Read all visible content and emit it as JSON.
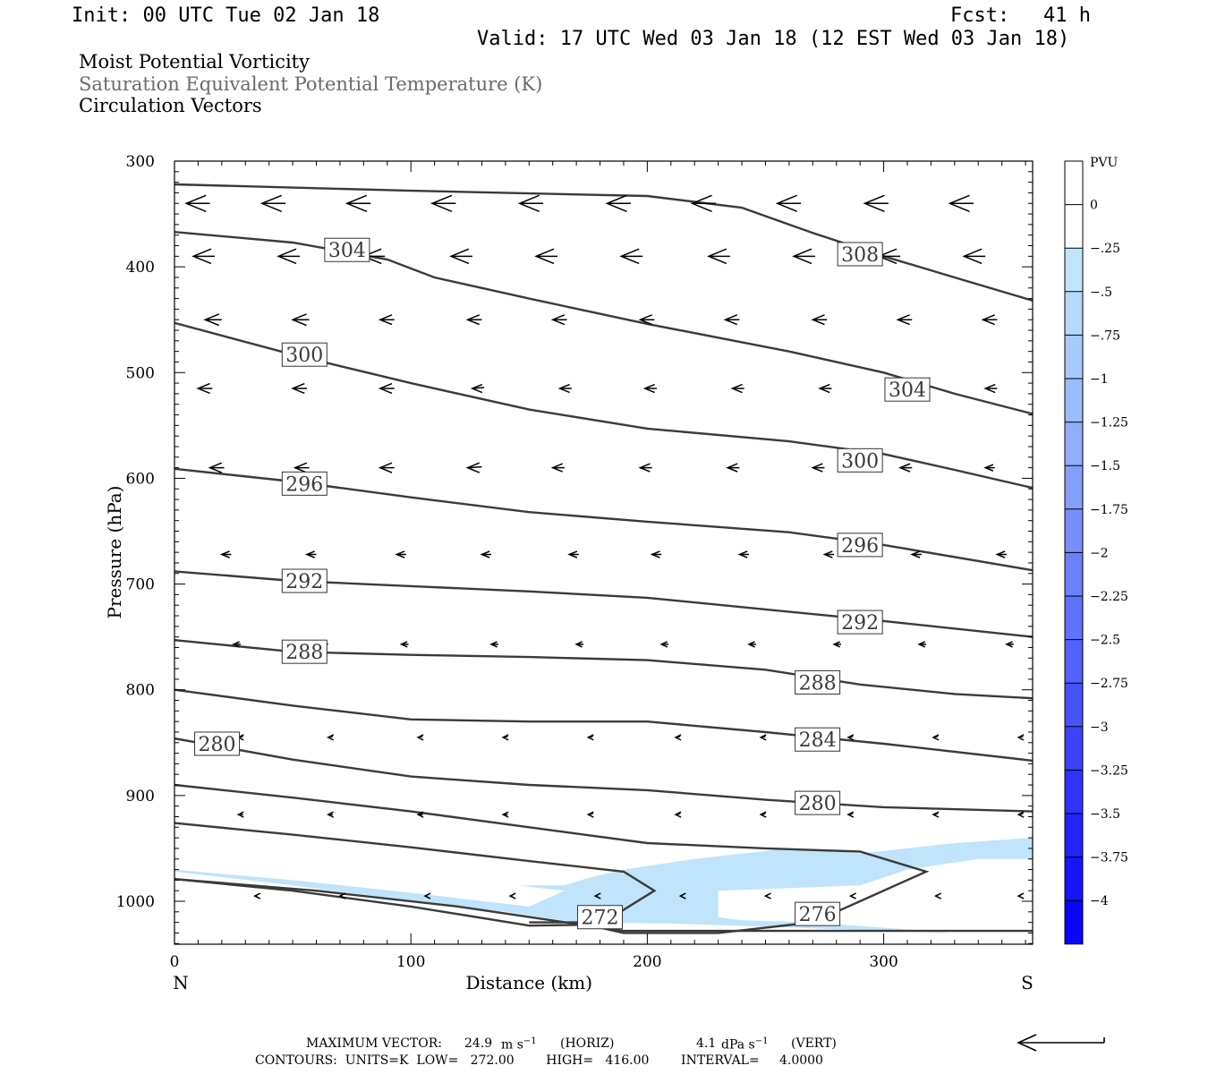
{
  "header": {
    "init": "Init: 00 UTC Tue 02 Jan 18",
    "fcst_label": "Fcst:",
    "fcst_value": "41 h",
    "valid": "Valid: 17 UTC Wed 03 Jan 18 (12 EST Wed 03 Jan 18)"
  },
  "titles": {
    "line1": "Moist Potential Vorticity",
    "line2": "Saturation Equivalent Potential Temperature (K)",
    "line3": "Circulation Vectors"
  },
  "footer": {
    "max_vector_label": "MAXIMUM VECTOR:",
    "max_vector_horiz_value": "24.9",
    "horiz_unit": "m s",
    "horiz_exp": "−1",
    "horiz_tag": "(HORIZ)",
    "max_vector_vert_value": "4.1",
    "vert_unit": "dPa s",
    "vert_exp": "−1",
    "vert_tag": "(VERT)",
    "contours_line": "CONTOURS:  UNITS=K  LOW=   272.00        HIGH=   416.00        INTERVAL=     4.0000"
  },
  "chart_data": {
    "type": "cross-section",
    "xlabel": "Distance (km)",
    "ylabel": "Pressure (hPa)",
    "xlim": [
      0,
      363
    ],
    "ylim": [
      300,
      1040
    ],
    "x_ticks": [
      0,
      100,
      200,
      300
    ],
    "y_ticks": [
      300,
      400,
      500,
      600,
      700,
      800,
      900,
      1000
    ],
    "endpoint_left": "N",
    "endpoint_right": "S",
    "colorbar": {
      "label": "PVU",
      "levels": [
        "0",
        "-.25",
        "-.5",
        "-.75",
        "-1",
        "-1.25",
        "-1.5",
        "-1.75",
        "-2",
        "-2.25",
        "-2.5",
        "-2.75",
        "-3",
        "-3.25",
        "-3.5",
        "-3.75",
        "-4"
      ],
      "colors": [
        "#ffffff",
        "#ffffff",
        "#bfe4fb",
        "#b4d9fb",
        "#a8cbfb",
        "#9cbdfb",
        "#90aefb",
        "#849ffb",
        "#788ffb",
        "#6c80fb",
        "#6071fb",
        "#5461fb",
        "#4852fb",
        "#3c43fb",
        "#2f33fb",
        "#2324fb",
        "#1715fb",
        "#0a06fb"
      ]
    },
    "contours": [
      {
        "label": "308",
        "points": [
          [
            0,
            322
          ],
          [
            100,
            328
          ],
          [
            200,
            333
          ],
          [
            240,
            344
          ],
          [
            270,
            368
          ],
          [
            300,
            390
          ],
          [
            330,
            410
          ],
          [
            363,
            432
          ]
        ]
      },
      {
        "label": "304",
        "points": [
          [
            0,
            367
          ],
          [
            50,
            377
          ],
          [
            90,
            393
          ],
          [
            110,
            410
          ],
          [
            150,
            430
          ],
          [
            200,
            454
          ],
          [
            260,
            480
          ],
          [
            300,
            500
          ],
          [
            330,
            520
          ],
          [
            363,
            539
          ]
        ]
      },
      {
        "label": "300",
        "points": [
          [
            0,
            453
          ],
          [
            50,
            483
          ],
          [
            100,
            510
          ],
          [
            150,
            535
          ],
          [
            200,
            553
          ],
          [
            260,
            565
          ],
          [
            300,
            577
          ],
          [
            330,
            592
          ],
          [
            363,
            609
          ]
        ]
      },
      {
        "label": "296",
        "points": [
          [
            0,
            591
          ],
          [
            50,
            603
          ],
          [
            100,
            618
          ],
          [
            150,
            632
          ],
          [
            200,
            641
          ],
          [
            260,
            651
          ],
          [
            300,
            663
          ],
          [
            363,
            687
          ]
        ]
      },
      {
        "label": "292",
        "points": [
          [
            0,
            688
          ],
          [
            50,
            697
          ],
          [
            100,
            702
          ],
          [
            150,
            707
          ],
          [
            200,
            713
          ],
          [
            250,
            724
          ],
          [
            300,
            735
          ],
          [
            363,
            750
          ]
        ]
      },
      {
        "label": "288",
        "points": [
          [
            0,
            753
          ],
          [
            50,
            764
          ],
          [
            100,
            767
          ],
          [
            150,
            769
          ],
          [
            200,
            772
          ],
          [
            250,
            781
          ],
          [
            290,
            795
          ],
          [
            330,
            804
          ],
          [
            363,
            808
          ]
        ]
      },
      {
        "label": "284",
        "points": [
          [
            0,
            800
          ],
          [
            50,
            815
          ],
          [
            100,
            828
          ],
          [
            150,
            830
          ],
          [
            200,
            830
          ],
          [
            250,
            840
          ],
          [
            300,
            851
          ],
          [
            363,
            867
          ]
        ]
      },
      {
        "label": "280",
        "points": [
          [
            0,
            846
          ],
          [
            50,
            866
          ],
          [
            100,
            882
          ],
          [
            150,
            890
          ],
          [
            200,
            895
          ],
          [
            250,
            904
          ],
          [
            300,
            911
          ],
          [
            363,
            915
          ]
        ]
      },
      {
        "label": "276",
        "points": [
          [
            0,
            890
          ],
          [
            50,
            902
          ],
          [
            100,
            915
          ],
          [
            150,
            930
          ],
          [
            200,
            945
          ],
          [
            250,
            950
          ],
          [
            290,
            953
          ],
          [
            318,
            972
          ],
          [
            290,
            1000
          ],
          [
            270,
            1020
          ],
          [
            230,
            1030
          ],
          [
            190,
            1030
          ],
          [
            170,
            1020
          ],
          [
            150,
            1020
          ]
        ]
      },
      {
        "label": "272",
        "points": [
          [
            0,
            926
          ],
          [
            50,
            937
          ],
          [
            100,
            949
          ],
          [
            150,
            962
          ],
          [
            190,
            972
          ],
          [
            203,
            990
          ],
          [
            190,
            1008
          ],
          [
            180,
            1022
          ],
          [
            150,
            1023
          ],
          [
            100,
            1005
          ],
          [
            50,
            990
          ],
          [
            0,
            979
          ]
        ]
      },
      {
        "label": "",
        "points": [
          [
            0,
            979
          ],
          [
            60,
            990
          ],
          [
            120,
            1005
          ],
          [
            190,
            1028
          ],
          [
            363,
            1028
          ]
        ]
      }
    ],
    "contour_labels": [
      {
        "text": "308",
        "x": 290,
        "y": 388
      },
      {
        "text": "304",
        "x": 73,
        "y": 384
      },
      {
        "text": "304",
        "x": 310,
        "y": 516
      },
      {
        "text": "300",
        "x": 55,
        "y": 483
      },
      {
        "text": "300",
        "x": 290,
        "y": 583
      },
      {
        "text": "296",
        "x": 55,
        "y": 605
      },
      {
        "text": "296",
        "x": 290,
        "y": 663
      },
      {
        "text": "292",
        "x": 55,
        "y": 697
      },
      {
        "text": "292",
        "x": 290,
        "y": 736
      },
      {
        "text": "288",
        "x": 55,
        "y": 764
      },
      {
        "text": "288",
        "x": 272,
        "y": 793
      },
      {
        "text": "284",
        "x": 272,
        "y": 847
      },
      {
        "text": "280",
        "x": 18,
        "y": 851
      },
      {
        "text": "280",
        "x": 272,
        "y": 907
      },
      {
        "text": "276",
        "x": 272,
        "y": 1012
      },
      {
        "text": "272",
        "x": 180,
        "y": 1015
      }
    ],
    "pv_fill_regions": [
      {
        "level": "-.25",
        "points": [
          [
            0,
            972
          ],
          [
            50,
            985
          ],
          [
            100,
            1000
          ],
          [
            140,
            1010
          ],
          [
            170,
            1020
          ],
          [
            210,
            1021
          ],
          [
            250,
            1024
          ],
          [
            300,
            1028
          ],
          [
            330,
            1030
          ],
          [
            300,
            1025
          ],
          [
            270,
            1020
          ],
          [
            240,
            1018
          ],
          [
            230,
            1015
          ],
          [
            230,
            990
          ],
          [
            290,
            985
          ],
          [
            310,
            970
          ],
          [
            340,
            960
          ],
          [
            363,
            960
          ],
          [
            363,
            940
          ],
          [
            330,
            945
          ],
          [
            290,
            955
          ],
          [
            260,
            950
          ],
          [
            240,
            955
          ],
          [
            220,
            960
          ],
          [
            190,
            970
          ],
          [
            175,
            978
          ],
          [
            165,
            985
          ],
          [
            145,
            985
          ],
          [
            165,
            990
          ],
          [
            150,
            1005
          ],
          [
            100,
            992
          ],
          [
            50,
            980
          ],
          [
            0,
            970
          ]
        ]
      }
    ],
    "vector_rows": [
      {
        "p": 340,
        "vectors": [
          [
            5,
            10,
            4
          ],
          [
            37,
            10,
            4
          ],
          [
            73,
            10,
            3
          ],
          [
            109,
            10,
            3
          ],
          [
            146,
            10,
            3
          ],
          [
            183,
            10,
            3
          ],
          [
            219,
            10,
            3
          ],
          [
            255,
            10,
            2
          ],
          [
            292,
            10,
            2
          ],
          [
            328,
            10,
            2
          ]
        ]
      },
      {
        "p": 390,
        "vectors": [
          [
            8,
            9,
            2
          ],
          [
            44,
            9,
            4
          ],
          [
            80,
            9,
            3
          ],
          [
            117,
            9,
            3
          ],
          [
            153,
            9,
            4
          ],
          [
            189,
            9,
            4
          ],
          [
            226,
            9,
            4
          ],
          [
            262,
            9,
            4
          ],
          [
            298,
            9,
            3
          ],
          [
            334,
            9,
            3
          ]
        ]
      },
      {
        "p": 450,
        "vectors": [
          [
            13,
            7,
            2
          ],
          [
            50,
            7,
            3
          ],
          [
            87,
            6,
            4
          ],
          [
            124,
            6,
            4
          ],
          [
            160,
            6,
            4
          ],
          [
            197,
            6,
            3
          ],
          [
            233,
            6,
            5
          ],
          [
            270,
            6,
            5
          ],
          [
            306,
            6,
            4
          ],
          [
            342,
            6,
            3
          ]
        ]
      },
      {
        "p": 515,
        "vectors": [
          [
            10,
            6,
            4
          ],
          [
            50,
            6,
            4
          ],
          [
            87,
            6,
            6
          ],
          [
            126,
            5,
            8
          ],
          [
            163,
            5,
            4
          ],
          [
            199,
            5,
            4
          ],
          [
            236,
            5,
            3
          ],
          [
            273,
            5,
            3
          ],
          [
            309,
            5,
            3
          ],
          [
            343,
            5,
            2
          ]
        ]
      },
      {
        "p": 590,
        "vectors": [
          [
            15,
            6,
            1
          ],
          [
            51,
            6,
            4
          ],
          [
            87,
            6,
            6
          ],
          [
            124,
            6,
            7
          ],
          [
            160,
            5,
            6
          ],
          [
            197,
            5,
            5
          ],
          [
            234,
            5,
            3
          ],
          [
            270,
            5,
            3
          ],
          [
            307,
            5,
            3
          ],
          [
            343,
            4,
            3
          ]
        ]
      },
      {
        "p": 672,
        "vectors": [
          [
            20,
            4,
            3
          ],
          [
            56,
            4,
            3
          ],
          [
            94,
            4,
            3
          ],
          [
            130,
            4,
            5
          ],
          [
            167,
            4,
            6
          ],
          [
            202,
            4,
            6
          ],
          [
            239,
            4,
            5
          ],
          [
            275,
            4,
            4
          ],
          [
            312,
            4,
            3
          ],
          [
            348,
            4,
            3
          ]
        ]
      },
      {
        "p": 757,
        "vectors": [
          [
            25,
            3,
            2
          ],
          [
            62,
            3,
            3
          ],
          [
            96,
            3,
            3
          ],
          [
            134,
            3,
            4
          ],
          [
            170,
            3,
            5
          ],
          [
            206,
            3,
            5
          ],
          [
            243,
            3,
            5
          ],
          [
            279,
            3,
            5
          ],
          [
            315,
            3,
            5
          ],
          [
            352,
            3,
            5
          ]
        ]
      },
      {
        "p": 845,
        "vectors": [
          [
            27,
            2,
            8
          ],
          [
            65,
            2,
            8
          ],
          [
            103,
            2,
            8
          ],
          [
            139,
            2,
            8
          ],
          [
            175,
            2,
            8
          ],
          [
            212,
            2,
            8
          ],
          [
            248,
            2,
            8
          ],
          [
            285,
            2,
            8
          ],
          [
            321,
            2,
            8
          ],
          [
            357,
            2,
            8
          ]
        ]
      },
      {
        "p": 918,
        "vectors": [
          [
            27,
            2,
            2
          ],
          [
            65,
            2,
            4
          ],
          [
            103,
            2,
            4
          ],
          [
            139,
            2,
            5
          ],
          [
            175,
            2,
            7
          ],
          [
            212,
            2,
            7
          ],
          [
            248,
            2,
            8
          ],
          [
            285,
            2,
            8
          ],
          [
            321,
            2,
            9
          ],
          [
            357,
            2,
            9
          ]
        ]
      },
      {
        "p": 995,
        "vectors": [
          [
            34,
            1,
            2
          ],
          [
            70,
            1,
            3
          ],
          [
            106,
            1,
            4
          ],
          [
            142,
            1,
            5
          ],
          [
            178,
            1,
            6
          ],
          [
            214,
            1,
            7
          ],
          [
            250,
            1,
            8
          ],
          [
            286,
            1,
            9
          ],
          [
            322,
            1,
            9
          ],
          [
            357,
            1,
            9
          ]
        ]
      }
    ],
    "reference_vector": {
      "speed": 24.9
    }
  }
}
